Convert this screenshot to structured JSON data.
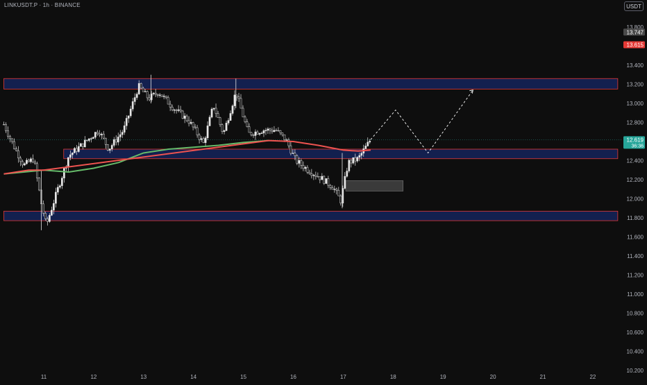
{
  "header": {
    "title": "LINKUSDT.P · 1h · BINANCE",
    "currency": "USDT"
  },
  "colors": {
    "background": "#0e0e0e",
    "zone_fill": "#13204f",
    "zone_border": "#e53935",
    "candle": "#e6e6e6",
    "ma_green": "#66bb6a",
    "ma_red": "#ef5350",
    "current_price_tag": "#26a69a",
    "level_tag_gray": "#4a4a4a",
    "level_tag_red": "#e53935",
    "projection": "#ffffff",
    "grey_box": "#3a3a3a"
  },
  "chart_data": {
    "type": "candlestick",
    "ylim": [
      10.2,
      14.0
    ],
    "y_ticks": [
      "13.800",
      "13.600",
      "13.400",
      "13.200",
      "13.000",
      "12.800",
      "12.600",
      "12.400",
      "12.200",
      "12.000",
      "11.800",
      "11.600",
      "11.400",
      "11.200",
      "11.000",
      "10.800",
      "10.600",
      "10.400",
      "10.200"
    ],
    "x_ticks": [
      "11",
      "12",
      "13",
      "14",
      "15",
      "16",
      "17",
      "18",
      "19",
      "20",
      "21",
      "22"
    ],
    "price_tags": [
      {
        "label": "13.747",
        "value": 13.747,
        "style": "gray"
      },
      {
        "label": "13.615",
        "value": 13.615,
        "style": "red"
      },
      {
        "label": "12.619",
        "value": 12.619,
        "sub": "36:36",
        "style": "green"
      }
    ],
    "zones": [
      {
        "from_day": 10.2,
        "to_day": 22.5,
        "low": 13.15,
        "high": 13.26
      },
      {
        "from_day": 11.4,
        "to_day": 22.5,
        "low": 12.42,
        "high": 12.52
      },
      {
        "from_day": 10.2,
        "to_day": 22.5,
        "low": 11.77,
        "high": 11.87
      }
    ],
    "grey_box": {
      "from_day": 17.05,
      "to_day": 18.2,
      "low": 12.08,
      "high": 12.19
    },
    "candle_path": [
      [
        10.2,
        12.78
      ],
      [
        10.4,
        12.55
      ],
      [
        10.6,
        12.35
      ],
      [
        10.8,
        12.42
      ],
      [
        10.95,
        11.95
      ],
      [
        11.05,
        11.72
      ],
      [
        11.25,
        12.05
      ],
      [
        11.5,
        12.45
      ],
      [
        11.8,
        12.58
      ],
      [
        12.1,
        12.72
      ],
      [
        12.3,
        12.52
      ],
      [
        12.6,
        12.72
      ],
      [
        12.9,
        13.18
      ],
      [
        13.1,
        13.05
      ],
      [
        13.3,
        13.12
      ],
      [
        13.6,
        12.95
      ],
      [
        13.9,
        12.82
      ],
      [
        14.2,
        12.58
      ],
      [
        14.4,
        12.98
      ],
      [
        14.6,
        12.68
      ],
      [
        14.85,
        13.12
      ],
      [
        15.1,
        12.68
      ],
      [
        15.4,
        12.72
      ],
      [
        15.65,
        12.72
      ],
      [
        15.85,
        12.62
      ],
      [
        16.05,
        12.4
      ],
      [
        16.3,
        12.3
      ],
      [
        16.55,
        12.22
      ],
      [
        16.8,
        12.12
      ],
      [
        16.95,
        11.98
      ],
      [
        17.1,
        12.38
      ],
      [
        17.3,
        12.42
      ],
      [
        17.5,
        12.58
      ],
      [
        17.55,
        12.62
      ]
    ],
    "ma_green": [
      [
        10.2,
        12.26
      ],
      [
        11.0,
        12.3
      ],
      [
        11.5,
        12.28
      ],
      [
        12.0,
        12.32
      ],
      [
        12.5,
        12.38
      ],
      [
        13.0,
        12.48
      ],
      [
        13.5,
        12.52
      ],
      [
        14.0,
        12.54
      ],
      [
        14.5,
        12.56
      ],
      [
        15.0,
        12.59
      ],
      [
        15.5,
        12.61
      ]
    ],
    "ma_red": [
      [
        10.2,
        12.26
      ],
      [
        10.7,
        12.3
      ],
      [
        11.0,
        12.3
      ],
      [
        15.5,
        12.61
      ],
      [
        16.0,
        12.6
      ],
      [
        16.5,
        12.56
      ],
      [
        17.0,
        12.51
      ],
      [
        17.3,
        12.5
      ],
      [
        17.55,
        12.51
      ]
    ],
    "projection": [
      [
        17.55,
        12.62
      ],
      [
        18.05,
        12.93
      ],
      [
        18.7,
        12.48
      ],
      [
        19.6,
        13.14
      ]
    ]
  }
}
